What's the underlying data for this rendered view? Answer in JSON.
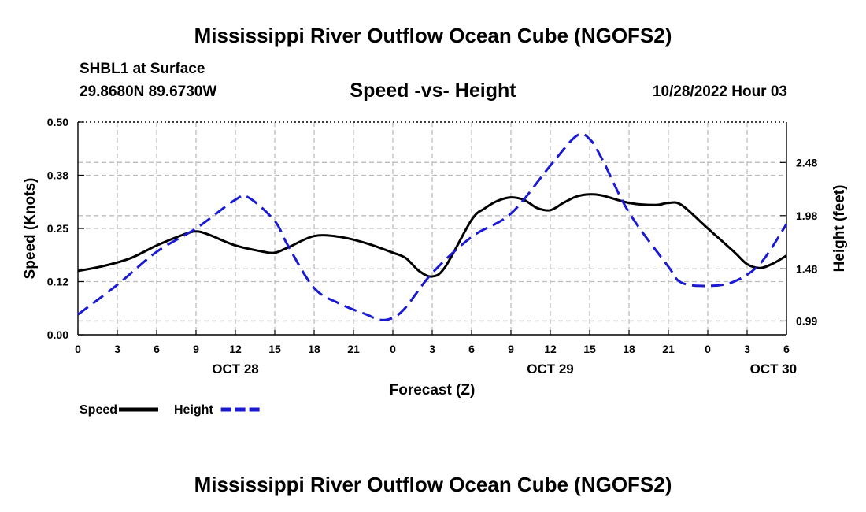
{
  "page": {
    "title_top": "Mississippi River Outflow Ocean Cube (NGOFS2)",
    "title_bottom": "Mississippi River Outflow Ocean Cube (NGOFS2)"
  },
  "header": {
    "station": "SHBL1 at Surface",
    "coords": "29.8680N  89.6730W",
    "date": "10/28/2022 Hour 03"
  },
  "chart_data": {
    "type": "line",
    "title": "Speed -vs- Height",
    "xlabel": "Forecast (Z)",
    "ylabel_left": "Speed (Knots)",
    "ylabel_right": "Height (feet)",
    "x_range_hours": [
      0,
      54
    ],
    "x_ticks": [
      {
        "h": 0,
        "label": "0"
      },
      {
        "h": 3,
        "label": "3"
      },
      {
        "h": 6,
        "label": "6"
      },
      {
        "h": 9,
        "label": "9"
      },
      {
        "h": 12,
        "label": "12"
      },
      {
        "h": 15,
        "label": "15"
      },
      {
        "h": 18,
        "label": "18"
      },
      {
        "h": 21,
        "label": "21"
      },
      {
        "h": 24,
        "label": "0"
      },
      {
        "h": 27,
        "label": "3"
      },
      {
        "h": 30,
        "label": "6"
      },
      {
        "h": 33,
        "label": "9"
      },
      {
        "h": 36,
        "label": "12"
      },
      {
        "h": 39,
        "label": "15"
      },
      {
        "h": 42,
        "label": "18"
      },
      {
        "h": 45,
        "label": "21"
      },
      {
        "h": 48,
        "label": "0"
      },
      {
        "h": 51,
        "label": "3"
      },
      {
        "h": 54,
        "label": "6"
      }
    ],
    "date_labels": [
      {
        "h": 12,
        "label": "OCT 28"
      },
      {
        "h": 36,
        "label": "OCT 29"
      },
      {
        "h": 53,
        "label": "OCT 30"
      }
    ],
    "ylim_left": [
      0,
      0.5
    ],
    "y_ticks_left": [
      {
        "v": 0.0,
        "label": "0.00"
      },
      {
        "v": 0.125,
        "label": "0.12"
      },
      {
        "v": 0.25,
        "label": "0.25"
      },
      {
        "v": 0.375,
        "label": "0.38"
      },
      {
        "v": 0.5,
        "label": "0.50"
      }
    ],
    "ylim_right": [
      0.86,
      2.86
    ],
    "y_ticks_right": [
      {
        "v": 0.99,
        "label": "0.99"
      },
      {
        "v": 1.48,
        "label": "1.48"
      },
      {
        "v": 1.98,
        "label": "1.98"
      },
      {
        "v": 2.48,
        "label": "2.48"
      }
    ],
    "series": [
      {
        "name": "Speed",
        "axis": "left",
        "color": "#000000",
        "dash": "solid",
        "x": [
          0,
          2,
          4,
          6,
          8,
          9,
          10,
          12,
          14,
          15,
          16,
          18,
          20,
          22,
          24,
          25,
          26,
          27,
          28,
          30,
          31,
          32,
          33,
          34,
          35,
          36,
          37,
          38,
          39,
          40,
          42,
          44,
          45,
          46,
          48,
          50,
          51,
          52,
          53,
          54
        ],
        "y": [
          0.15,
          0.162,
          0.18,
          0.21,
          0.235,
          0.243,
          0.235,
          0.21,
          0.196,
          0.193,
          0.205,
          0.232,
          0.23,
          0.215,
          0.193,
          0.18,
          0.15,
          0.137,
          0.16,
          0.27,
          0.297,
          0.315,
          0.323,
          0.317,
          0.298,
          0.293,
          0.31,
          0.325,
          0.33,
          0.327,
          0.31,
          0.305,
          0.31,
          0.305,
          0.25,
          0.195,
          0.166,
          0.157,
          0.168,
          0.186
        ]
      },
      {
        "name": "Height",
        "axis": "right",
        "color": "#1a1ad0",
        "dash": "dashed",
        "x": [
          0,
          3,
          6,
          9,
          12,
          13,
          15,
          16,
          18,
          20,
          22,
          23,
          24,
          25,
          27,
          30,
          33,
          36,
          38,
          39,
          40,
          42,
          45,
          46,
          48,
          50,
          52,
          54
        ],
        "y": [
          1.05,
          1.33,
          1.64,
          1.86,
          2.13,
          2.15,
          1.93,
          1.7,
          1.3,
          1.15,
          1.05,
          1.0,
          1.02,
          1.12,
          1.44,
          1.78,
          2.0,
          2.45,
          2.73,
          2.7,
          2.5,
          2.01,
          1.5,
          1.35,
          1.32,
          1.36,
          1.53,
          1.9
        ]
      }
    ],
    "legend": [
      {
        "label": "Speed",
        "color": "#000000",
        "dash": "solid"
      },
      {
        "label": "Height",
        "color": "#1a1ad0",
        "dash": "dashed"
      }
    ],
    "grid": true
  }
}
